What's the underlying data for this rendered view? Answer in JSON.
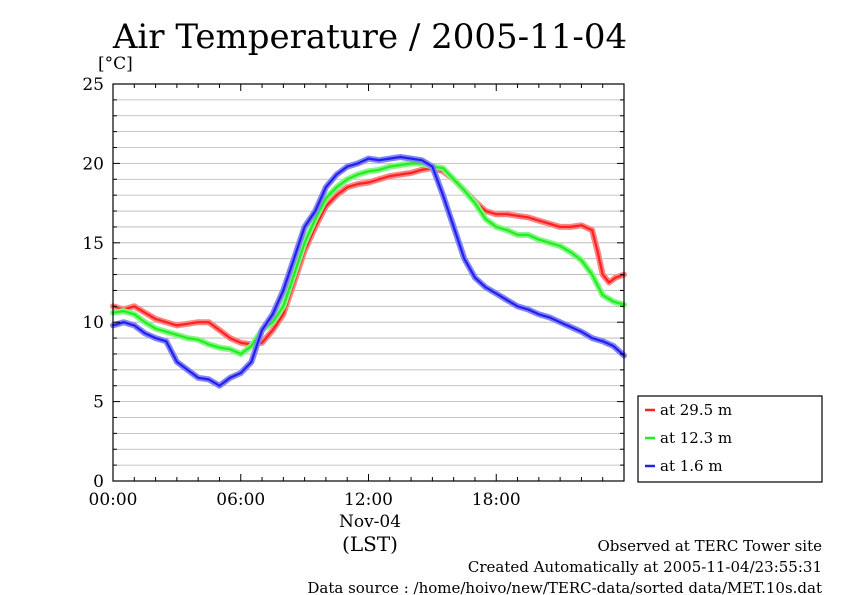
{
  "chart_data": {
    "type": "line",
    "title": "Air Temperature / 2005-11-04",
    "ylabel": "[°C]",
    "xlabel": "(LST)",
    "date_label": "Nov-04",
    "ylim": [
      0,
      25
    ],
    "xlim": [
      0,
      24
    ],
    "y_ticks": [
      0,
      5,
      10,
      15,
      20,
      25
    ],
    "x_ticks": [
      {
        "value": 0,
        "label": "00:00"
      },
      {
        "value": 6,
        "label": "06:00"
      },
      {
        "value": 12,
        "label": "12:00"
      },
      {
        "value": 18,
        "label": "18:00"
      }
    ],
    "grid": true,
    "legend_position": "right",
    "series": [
      {
        "name": "at 29.5 m",
        "color": "#ff2020",
        "x": [
          0,
          0.5,
          1,
          1.5,
          2,
          2.5,
          3,
          3.5,
          4,
          4.5,
          5,
          5.5,
          6,
          6.5,
          7,
          7.5,
          8,
          8.5,
          9,
          9.5,
          10,
          10.5,
          11,
          11.5,
          12,
          12.5,
          13,
          13.5,
          14,
          14.5,
          15,
          15.5,
          16,
          16.5,
          17,
          17.5,
          18,
          18.5,
          19,
          19.5,
          20,
          20.5,
          21,
          21.5,
          22,
          22.5,
          22.75,
          23,
          23.3,
          23.6,
          24
        ],
        "y": [
          11.0,
          10.8,
          11.0,
          10.6,
          10.2,
          10.0,
          9.8,
          9.9,
          10.0,
          10.0,
          9.5,
          9.0,
          8.7,
          8.6,
          8.7,
          9.5,
          10.5,
          12.5,
          14.5,
          16.0,
          17.3,
          18.0,
          18.5,
          18.7,
          18.8,
          19.0,
          19.2,
          19.3,
          19.4,
          19.6,
          19.7,
          19.5,
          19.0,
          18.3,
          17.6,
          17.0,
          16.8,
          16.8,
          16.7,
          16.6,
          16.4,
          16.2,
          16.0,
          16.0,
          16.1,
          15.8,
          14.5,
          13.0,
          12.5,
          12.8,
          13.0
        ]
      },
      {
        "name": "at 12.3 m",
        "color": "#20ee20",
        "x": [
          0,
          0.5,
          1,
          1.5,
          2,
          2.5,
          3,
          3.5,
          4,
          4.5,
          5,
          5.5,
          6,
          6.5,
          7,
          7.5,
          8,
          8.5,
          9,
          9.5,
          10,
          10.5,
          11,
          11.5,
          12,
          12.5,
          13,
          13.5,
          14,
          14.5,
          15,
          15.5,
          16,
          16.5,
          17,
          17.5,
          18,
          18.5,
          19,
          19.5,
          20,
          20.5,
          21,
          21.5,
          22,
          22.5,
          23,
          23.5,
          24
        ],
        "y": [
          10.6,
          10.7,
          10.5,
          10.0,
          9.6,
          9.4,
          9.2,
          9.0,
          8.9,
          8.6,
          8.4,
          8.3,
          8.0,
          8.5,
          9.5,
          10.0,
          11.0,
          13.0,
          15.0,
          16.5,
          17.8,
          18.5,
          19.0,
          19.3,
          19.5,
          19.6,
          19.8,
          19.9,
          20.0,
          20.0,
          19.8,
          19.7,
          19.0,
          18.3,
          17.5,
          16.5,
          16.0,
          15.8,
          15.5,
          15.5,
          15.2,
          15.0,
          14.8,
          14.4,
          13.9,
          13.0,
          11.7,
          11.3,
          11.1
        ]
      },
      {
        "name": "at 1.6 m",
        "color": "#2020ee",
        "x": [
          0,
          0.5,
          1,
          1.5,
          2,
          2.5,
          3,
          3.5,
          4,
          4.5,
          5,
          5.5,
          6,
          6.5,
          7,
          7.5,
          8,
          8.5,
          9,
          9.5,
          10,
          10.5,
          11,
          11.5,
          12,
          12.5,
          13,
          13.5,
          14,
          14.5,
          15,
          15.5,
          16,
          16.5,
          17,
          17.5,
          18,
          18.5,
          19,
          19.5,
          20,
          20.5,
          21,
          21.5,
          22,
          22.5,
          23,
          23.5,
          24
        ],
        "y": [
          9.8,
          10.0,
          9.8,
          9.3,
          9.0,
          8.8,
          7.5,
          7.0,
          6.5,
          6.4,
          6.0,
          6.5,
          6.8,
          7.5,
          9.5,
          10.5,
          12.0,
          14.0,
          16.0,
          17.0,
          18.5,
          19.3,
          19.8,
          20.0,
          20.3,
          20.2,
          20.3,
          20.4,
          20.3,
          20.2,
          19.8,
          18.0,
          16.0,
          14.0,
          12.8,
          12.2,
          11.8,
          11.4,
          11.0,
          10.8,
          10.5,
          10.3,
          10.0,
          9.7,
          9.4,
          9.0,
          8.8,
          8.5,
          7.9
        ]
      }
    ]
  },
  "footer": {
    "line1": "Observed at TERC Tower site",
    "line2": "Created Automatically at 2005-11-04/23:55:31",
    "line3": "Data source : /home/hoivo/new/TERC-data/sorted  data/MET.10s.dat"
  }
}
